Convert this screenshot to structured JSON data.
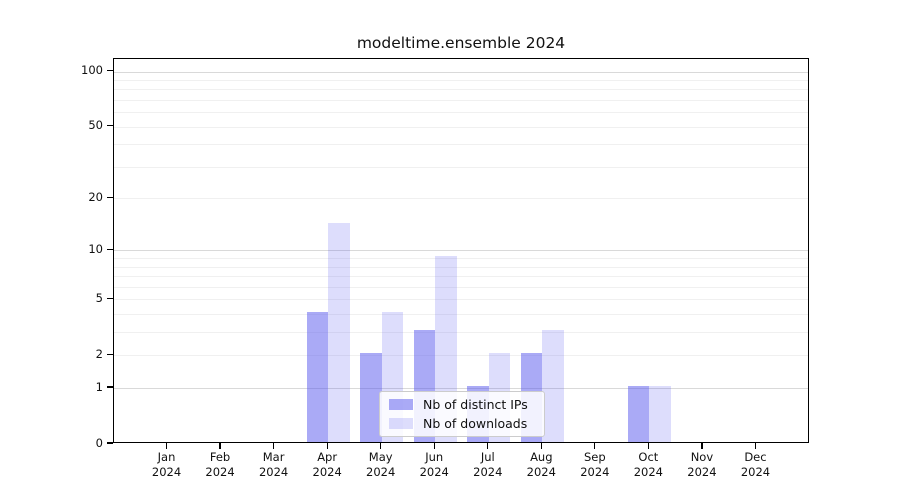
{
  "chart_data": {
    "type": "bar",
    "title": "modeltime.ensemble 2024",
    "x_months": [
      "Jan",
      "Feb",
      "Mar",
      "Apr",
      "May",
      "Jun",
      "Jul",
      "Aug",
      "Sep",
      "Oct",
      "Nov",
      "Dec"
    ],
    "x_year": "2024",
    "series": [
      {
        "name": "Nb of distinct IPs",
        "color": "rgba(85,85,238,0.5)",
        "values": [
          0,
          0,
          0,
          4,
          2,
          3,
          1,
          2,
          0,
          1,
          0,
          0
        ]
      },
      {
        "name": "Nb of downloads",
        "color": "rgba(85,85,238,0.2)",
        "values": [
          0,
          0,
          0,
          14,
          4,
          9,
          2,
          3,
          0,
          1,
          0,
          0
        ]
      }
    ],
    "y_scale": "log1p",
    "y_ticks": [
      0,
      1,
      2,
      5,
      10,
      20,
      50,
      100
    ],
    "y_major_grid": [
      1,
      10,
      100
    ],
    "y_minor_grid": [
      2,
      3,
      4,
      5,
      6,
      7,
      8,
      9,
      20,
      30,
      40,
      50,
      60,
      70,
      80,
      90
    ],
    "ylim": [
      0,
      117
    ],
    "grid_major_color": "#d9d9d9",
    "grid_minor_color": "#f0f0f0",
    "axis_color": "#000000",
    "background_color": "#ffffff",
    "legend_position": "lower center",
    "xlabel": "",
    "ylabel": ""
  }
}
